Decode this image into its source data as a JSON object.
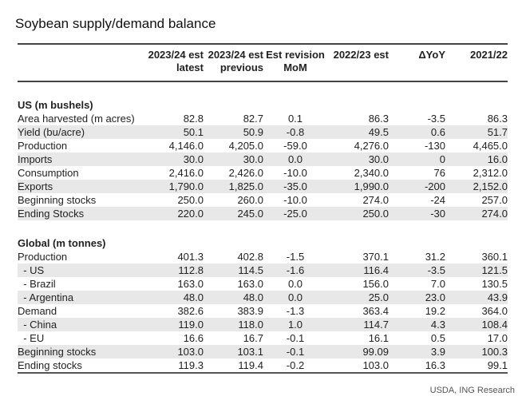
{
  "title": "Soybean supply/demand balance",
  "headers": [
    [
      "2023/24 est",
      "latest"
    ],
    [
      "2023/24 est",
      "previous"
    ],
    [
      "Est revision",
      "MoM"
    ],
    [
      "2022/23 est",
      ""
    ],
    [
      "ΔYoY",
      ""
    ],
    [
      "2021/22",
      ""
    ]
  ],
  "sections": [
    {
      "label": "US (m bushels)",
      "rows": [
        [
          "Area harvested (m acres)",
          "82.8",
          "82.7",
          "0.1",
          "86.3",
          "-3.5",
          "86.3"
        ],
        [
          "Yield (bu/acre)",
          "50.1",
          "50.9",
          "-0.8",
          "49.5",
          "0.6",
          "51.7"
        ],
        [
          "Production",
          "4,146.0",
          "4,205.0",
          "-59.0",
          "4,276.0",
          "-130",
          "4,465.0"
        ],
        [
          "Imports",
          "30.0",
          "30.0",
          "0.0",
          "30.0",
          "0",
          "16.0"
        ],
        [
          "Consumption",
          "2,416.0",
          "2,426.0",
          "-10.0",
          "2,340.0",
          "76",
          "2,312.0"
        ],
        [
          "Exports",
          "1,790.0",
          "1,825.0",
          "-35.0",
          "1,990.0",
          "-200",
          "2,152.0"
        ],
        [
          "Beginning stocks",
          "250.0",
          "260.0",
          "-10.0",
          "274.0",
          "-24",
          "257.0"
        ],
        [
          "Ending Stocks",
          "220.0",
          "245.0",
          "-25.0",
          "250.0",
          "-30",
          "274.0"
        ]
      ]
    },
    {
      "label": "Global (m tonnes)",
      "rows": [
        [
          "Production",
          "401.3",
          "402.8",
          "-1.5",
          "370.1",
          "31.2",
          "360.1"
        ],
        [
          "  - US",
          "112.8",
          "114.5",
          "-1.6",
          "116.4",
          "-3.5",
          "121.5"
        ],
        [
          "  - Brazil",
          "163.0",
          "163.0",
          "0.0",
          "156.0",
          "7.0",
          "130.5"
        ],
        [
          "  - Argentina",
          "48.0",
          "48.0",
          "0.0",
          "25.0",
          "23.0",
          "43.9"
        ],
        [
          "Demand",
          "382.6",
          "383.9",
          "-1.3",
          "363.4",
          "19.2",
          "364.0"
        ],
        [
          "  - China",
          "119.0",
          "118.0",
          "1.0",
          "114.7",
          "4.3",
          "108.4"
        ],
        [
          "  - EU",
          "16.6",
          "16.7",
          "-0.1",
          "16.1",
          "0.5",
          "17.0"
        ],
        [
          "Beginning stocks",
          "103.0",
          "103.1",
          "-0.1",
          "99.09",
          "3.9",
          "100.3"
        ],
        [
          "Ending stocks",
          "119.3",
          "119.4",
          "-0.2",
          "103.0",
          "16.3",
          "99.1"
        ]
      ]
    }
  ],
  "source": "USDA, ING Research"
}
